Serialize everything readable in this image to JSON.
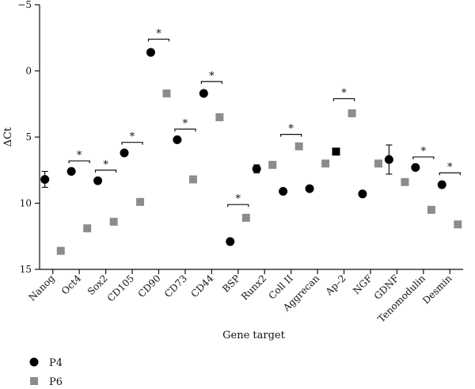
{
  "chart_data": {
    "type": "scatter",
    "title": "",
    "xlabel": "Gene target",
    "ylabel": "ΔCt",
    "ylim": [
      15,
      -5
    ],
    "y_inverted": true,
    "y_ticks": [
      -5,
      0,
      5,
      10,
      15
    ],
    "y_tick_labels": [
      "−5",
      "0",
      "5",
      "10",
      "15"
    ],
    "grid": false,
    "legend_position": "bottom-left",
    "categories": [
      "Nanog",
      "Oct4",
      "Sox2",
      "CD105",
      "CD90",
      "CD73",
      "CD44",
      "BSP",
      "Runx2",
      "Coll II",
      "Aggrecan",
      "Ap–2",
      "NGF",
      "GDNF",
      "Tenomodulin",
      "Desmin"
    ],
    "series": [
      {
        "name": "P4",
        "marker": "circle",
        "color": "#000000",
        "values": [
          8.2,
          7.6,
          8.3,
          6.2,
          -1.4,
          5.2,
          1.7,
          12.9,
          7.4,
          9.1,
          8.9,
          6.1,
          9.3,
          6.7,
          7.3,
          8.6
        ],
        "errors": [
          0.6,
          0,
          0,
          0,
          0,
          0,
          0,
          0,
          0.3,
          0,
          0,
          0,
          0,
          1.1,
          0,
          0
        ],
        "marker_overrides": {
          "11": "square"
        }
      },
      {
        "name": "P6",
        "marker": "square",
        "color": "#8c8c8c",
        "values": [
          13.6,
          11.9,
          11.4,
          9.9,
          1.7,
          8.2,
          3.5,
          11.1,
          7.1,
          5.7,
          7.0,
          3.2,
          7.0,
          8.4,
          10.5,
          11.6
        ],
        "errors": [
          0,
          0,
          0,
          0,
          0,
          0,
          0,
          0,
          0,
          0,
          0,
          0,
          0,
          0,
          0,
          0
        ]
      }
    ],
    "significance": [
      {
        "category": "Oct4",
        "label": "*",
        "value": 6.8
      },
      {
        "category": "Sox2",
        "label": "*",
        "value": 7.5
      },
      {
        "category": "CD105",
        "label": "*",
        "value": 5.4
      },
      {
        "category": "CD90",
        "label": "*",
        "value": -2.4
      },
      {
        "category": "CD73",
        "label": "*",
        "value": 4.4
      },
      {
        "category": "CD44",
        "label": "*",
        "value": 0.8
      },
      {
        "category": "BSP",
        "label": "*",
        "value": 10.1
      },
      {
        "category": "Coll II",
        "label": "*",
        "value": 4.8
      },
      {
        "category": "Ap–2",
        "label": "*",
        "value": 2.1
      },
      {
        "category": "Tenomodulin",
        "label": "*",
        "value": 6.5
      },
      {
        "category": "Desmin",
        "label": "*",
        "value": 7.7
      }
    ]
  }
}
